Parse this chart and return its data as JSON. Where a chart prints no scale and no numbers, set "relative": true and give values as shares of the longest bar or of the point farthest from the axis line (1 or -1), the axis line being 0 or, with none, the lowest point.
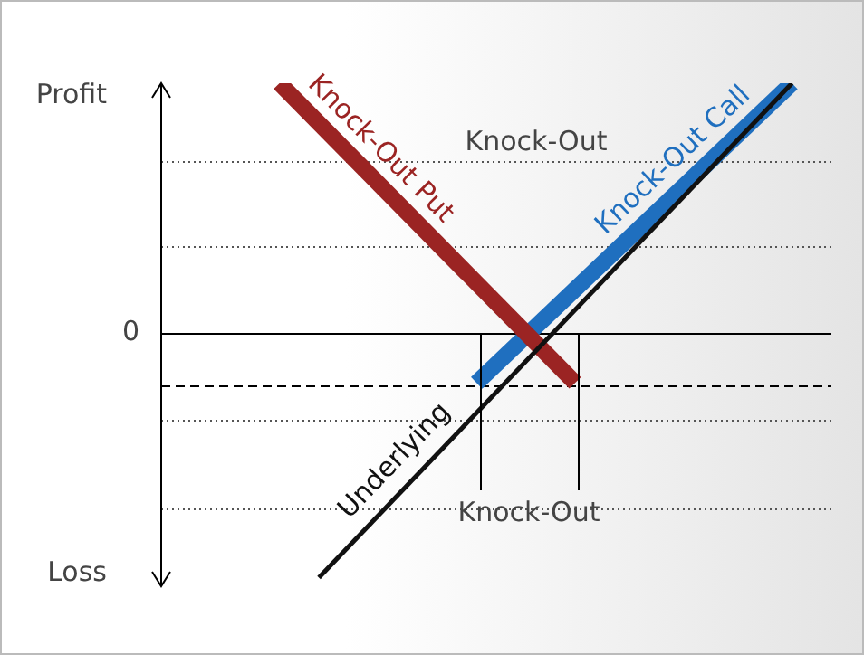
{
  "chart_data": {
    "type": "line",
    "relative": true,
    "legend": false,
    "categories": [
      null,
      null,
      null,
      null,
      null,
      null,
      null,
      null,
      null,
      null,
      null,
      null,
      null,
      null,
      null,
      null,
      null,
      null,
      null,
      null,
      null,
      null,
      null,
      null,
      null,
      null,
      null,
      null,
      null,
      null,
      null,
      null,
      null,
      null,
      null
    ],
    "series": [
      {
        "name": "Underlying",
        "color": "#111111",
        "values": [
          null,
          null,
          null,
          null,
          null,
          null,
          null,
          null,
          -0.98,
          null,
          null,
          null,
          null,
          null,
          null,
          null,
          null,
          null,
          null,
          null,
          null,
          null,
          null,
          null,
          null,
          null,
          null,
          null,
          null,
          null,
          null,
          null,
          1.0,
          null,
          null
        ]
      },
      {
        "name": "Knock-Out Put",
        "color": "#9b2423",
        "values": [
          null,
          null,
          null,
          null,
          null,
          null,
          1.0,
          null,
          null,
          null,
          null,
          null,
          null,
          null,
          null,
          null,
          null,
          null,
          null,
          null,
          null,
          -0.2,
          null,
          null,
          null,
          null,
          null,
          null,
          null,
          null,
          null,
          null,
          null,
          null,
          null
        ]
      },
      {
        "name": "Knock-Out Call",
        "color": "#1f6fbf",
        "values": [
          null,
          null,
          null,
          null,
          null,
          null,
          null,
          null,
          null,
          null,
          null,
          null,
          null,
          null,
          null,
          null,
          -0.2,
          null,
          null,
          null,
          null,
          null,
          null,
          null,
          null,
          null,
          null,
          null,
          null,
          null,
          null,
          null,
          1.0,
          null,
          null
        ]
      }
    ],
    "ref_lines": [
      {
        "axis": "y",
        "value": 0,
        "label": "0",
        "color": "#000000",
        "line_style": "solid"
      },
      {
        "axis": "y",
        "value": 0.69,
        "color": "#555555",
        "line_style": "dotted"
      },
      {
        "axis": "y",
        "value": 0.35,
        "color": "#555555",
        "line_style": "dotted"
      },
      {
        "axis": "y",
        "value": -0.21,
        "color": "#000000",
        "line_style": "dashed"
      },
      {
        "axis": "y",
        "value": -0.35,
        "color": "#555555",
        "line_style": "dotted"
      },
      {
        "axis": "y",
        "value": -0.7,
        "color": "#555555",
        "line_style": "dotted"
      }
    ],
    "annotations": [
      "Profit",
      "Loss",
      "Knock-Out",
      "Knock-Out"
    ]
  }
}
